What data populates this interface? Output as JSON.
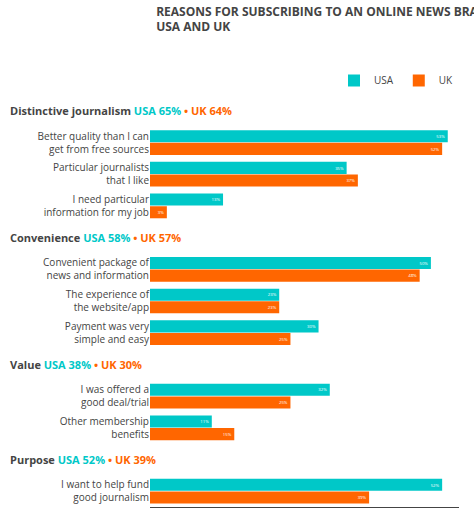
{
  "chart_data": {
    "type": "bar",
    "orientation": "horizontal",
    "title": "REASONS FOR SUBSCRIBING TO AN ONLINE NEWS BRAND –\nUSA AND UK",
    "categories": [
      "Better quality than I can\nget from free sources",
      "Particular journalists\nthat I like",
      "I need particular\ninformation for my job",
      "Convenient package of\nnews and information",
      "The experience of\nthe website/app",
      "Payment was very\nsimple and easy",
      "I was offered a\ngood deal/trial",
      "Other membership\nbenefits",
      "I want to help fund\ngood journalism"
    ],
    "series": [
      {
        "name": "USA",
        "color": "#00c8c8",
        "values": [
          53,
          35,
          13,
          50,
          23,
          30,
          32,
          11,
          52
        ],
        "value_labels": [
          "53%",
          "35%",
          "13%",
          "50%",
          "23%",
          "30%",
          "32%",
          "11%",
          "52%"
        ]
      },
      {
        "name": "UK",
        "color": "#ff6600",
        "values": [
          52,
          37,
          3,
          48,
          23,
          25,
          25,
          15,
          39
        ],
        "value_labels": [
          "52%",
          "37%",
          "3%",
          "48%",
          "23%",
          "25%",
          "25%",
          "15%",
          "39%"
        ]
      }
    ],
    "xlim": [
      0,
      55
    ],
    "tick_labels": "y",
    "grid": false,
    "legend": "top right",
    "data_labels": true,
    "annotations": [
      {
        "text": "Distinctive journalism",
        "category": "Better quality than I can\nget from free sources",
        "values": [
          65,
          64
        ],
        "value_labels": [
          "USA 65%",
          "• UK 64%"
        ]
      },
      {
        "text": "Convenience",
        "category": "Convenient package of\nnews and information",
        "values": [
          58,
          57
        ],
        "value_labels": [
          "USA 58%",
          "• UK 57%"
        ]
      },
      {
        "text": "Value",
        "category": "I was offered a\ngood deal/trial",
        "values": [
          38,
          30
        ],
        "value_labels": [
          "USA 38%",
          "• UK 30%"
        ]
      },
      {
        "text": "Purpose",
        "category": "I want to help fund\ngood journalism",
        "values": [
          52,
          39
        ],
        "value_labels": [
          "USA 52%",
          "• UK 39%"
        ]
      }
    ]
  }
}
